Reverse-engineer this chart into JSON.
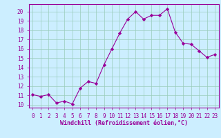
{
  "x": [
    0,
    1,
    2,
    3,
    4,
    5,
    6,
    7,
    8,
    9,
    10,
    11,
    12,
    13,
    14,
    15,
    16,
    17,
    18,
    19,
    20,
    21,
    22,
    23
  ],
  "y": [
    11.1,
    10.9,
    11.1,
    10.2,
    10.4,
    10.1,
    11.8,
    12.5,
    12.3,
    14.3,
    16.0,
    17.7,
    19.2,
    20.0,
    19.2,
    19.6,
    19.6,
    20.3,
    17.8,
    16.6,
    16.5,
    15.8,
    15.1,
    15.4
  ],
  "line_color": "#990099",
  "marker": "D",
  "marker_size": 2.2,
  "bg_color": "#cceeff",
  "grid_color": "#99ccbb",
  "xlabel": "Windchill (Refroidissement éolien,°C)",
  "ylabel_ticks": [
    10,
    11,
    12,
    13,
    14,
    15,
    16,
    17,
    18,
    19,
    20
  ],
  "xticks": [
    0,
    1,
    2,
    3,
    4,
    5,
    6,
    7,
    8,
    9,
    10,
    11,
    12,
    13,
    14,
    15,
    16,
    17,
    18,
    19,
    20,
    21,
    22,
    23
  ],
  "ylim": [
    9.7,
    20.8
  ],
  "xlim": [
    -0.5,
    23.5
  ],
  "tick_fontsize": 5.5,
  "xlabel_fontsize": 6.0
}
